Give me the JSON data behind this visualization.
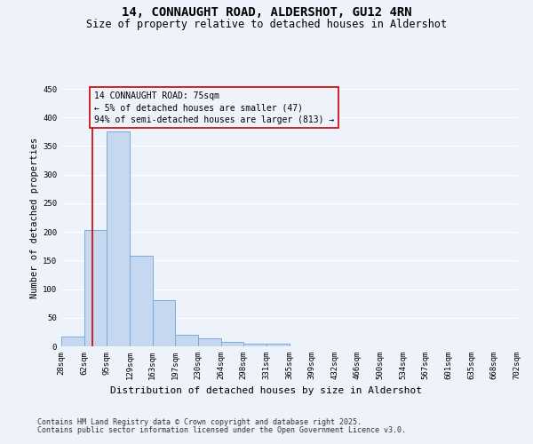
{
  "title_line1": "14, CONNAUGHT ROAD, ALDERSHOT, GU12 4RN",
  "title_line2": "Size of property relative to detached houses in Aldershot",
  "xlabel": "Distribution of detached houses by size in Aldershot",
  "ylabel": "Number of detached properties",
  "bar_color": "#c5d8f0",
  "bar_edge_color": "#7aaadc",
  "bins": [
    "28sqm",
    "62sqm",
    "95sqm",
    "129sqm",
    "163sqm",
    "197sqm",
    "230sqm",
    "264sqm",
    "298sqm",
    "331sqm",
    "365sqm",
    "399sqm",
    "432sqm",
    "466sqm",
    "500sqm",
    "534sqm",
    "567sqm",
    "601sqm",
    "635sqm",
    "668sqm",
    "702sqm"
  ],
  "values": [
    17,
    204,
    375,
    159,
    80,
    20,
    14,
    7,
    5,
    4,
    0,
    0,
    0,
    0,
    0,
    0,
    0,
    0,
    0,
    0
  ],
  "ylim": [
    0,
    450
  ],
  "yticks": [
    0,
    50,
    100,
    150,
    200,
    250,
    300,
    350,
    400,
    450
  ],
  "property_line_bin_index": 1.37,
  "annotation_box_text": "14 CONNAUGHT ROAD: 75sqm\n← 5% of detached houses are smaller (47)\n94% of semi-detached houses are larger (813) →",
  "annotation_box_color": "#cc0000",
  "bg_color": "#eef2fa",
  "grid_color": "#ffffff",
  "footer_line1": "Contains HM Land Registry data © Crown copyright and database right 2025.",
  "footer_line2": "Contains public sector information licensed under the Open Government Licence v3.0.",
  "title_fontsize": 10,
  "subtitle_fontsize": 8.5,
  "ylabel_fontsize": 7.5,
  "xlabel_fontsize": 8,
  "tick_fontsize": 6.5,
  "annotation_fontsize": 7,
  "footer_fontsize": 6
}
